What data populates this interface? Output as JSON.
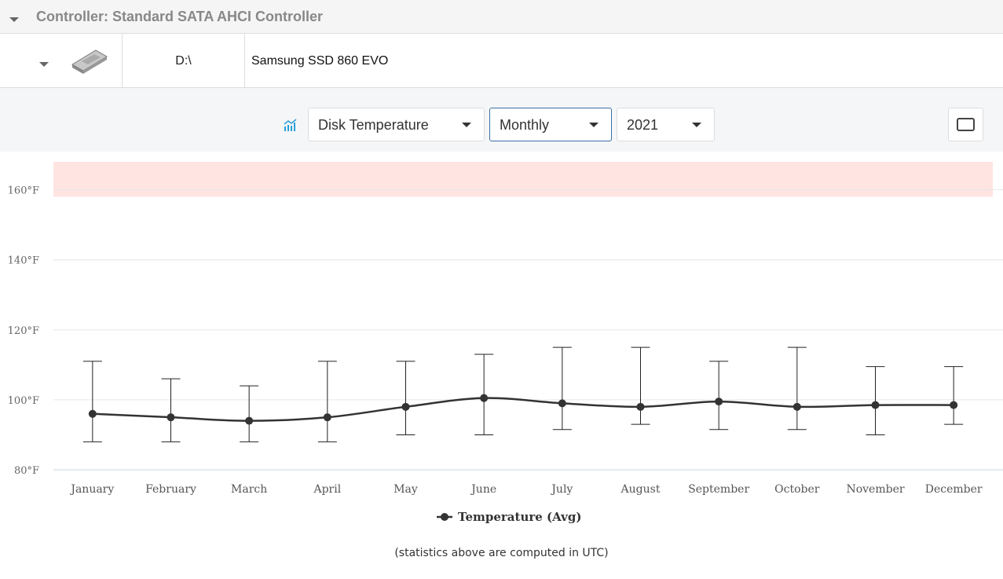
{
  "header": {
    "title": "Controller: Standard SATA AHCI Controller"
  },
  "disk": {
    "drive": "D:\\",
    "model": "Samsung SSD 860 EVO"
  },
  "toolbar": {
    "metric": "Disk Temperature",
    "period": "Monthly",
    "year": "2021"
  },
  "chart_data": {
    "type": "line",
    "categories": [
      "January",
      "February",
      "March",
      "April",
      "May",
      "June",
      "July",
      "August",
      "September",
      "October",
      "November",
      "December"
    ],
    "series": [
      {
        "name": "Temperature (Avg)",
        "color": "#333333",
        "values": [
          96,
          95,
          94,
          95,
          98,
          100.5,
          99,
          98,
          99.5,
          98,
          98.5,
          98.5
        ],
        "min": [
          88,
          88,
          88,
          88,
          90,
          90,
          91.5,
          93,
          91.5,
          91.5,
          90,
          93
        ],
        "max": [
          111,
          106,
          104,
          111,
          111,
          113,
          115,
          115,
          111,
          115,
          109.5,
          109.5
        ]
      }
    ],
    "ylim": [
      80,
      168
    ],
    "yticks": [
      {
        "value": 80,
        "label": "80°F"
      },
      {
        "value": 100,
        "label": "100°F"
      },
      {
        "value": 120,
        "label": "120°F"
      },
      {
        "value": 140,
        "label": "140°F"
      },
      {
        "value": 160,
        "label": "160°F"
      }
    ],
    "grid": true,
    "bands": [
      {
        "from": 158,
        "to": 168,
        "color": "#ffe4e1"
      }
    ]
  },
  "footnote": "(statistics above are computed in UTC)"
}
